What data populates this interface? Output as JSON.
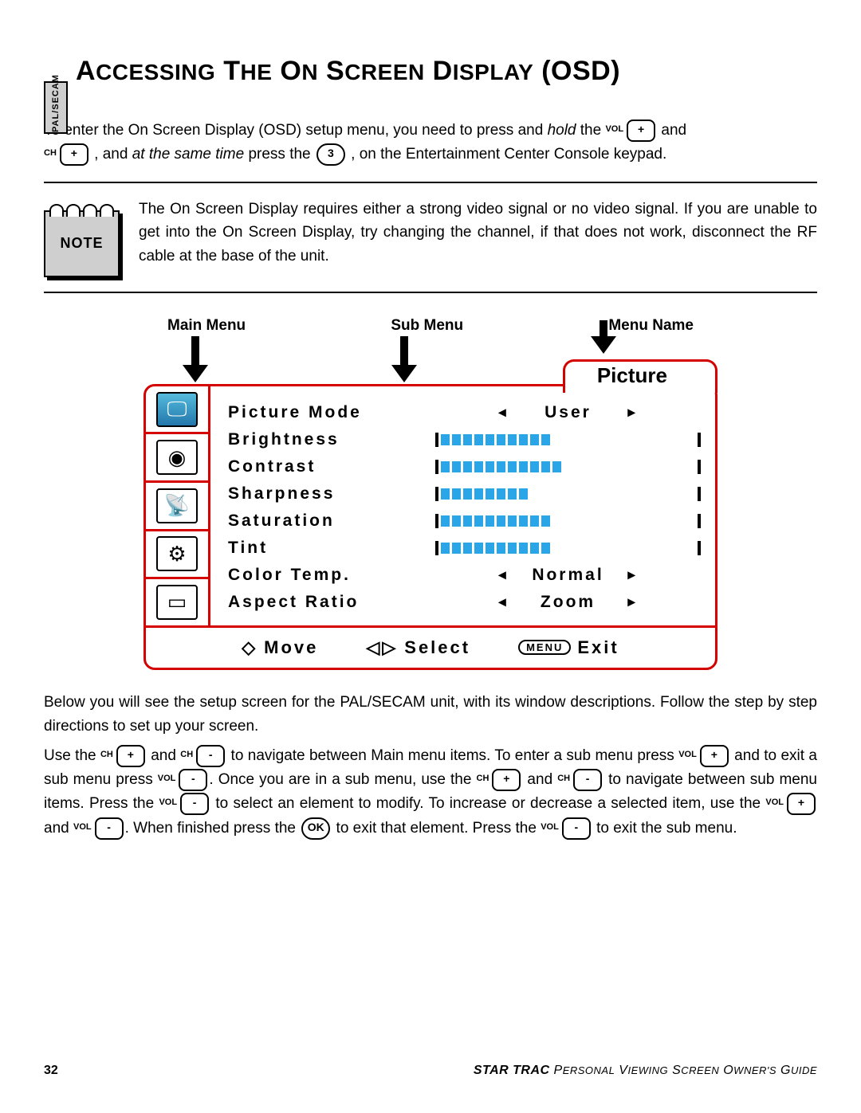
{
  "side_tab": "PAL/SECAM",
  "title_html": "A<span style='font-size:28px'>CCESSING</span> T<span style='font-size:28px'>HE</span> O<span style='font-size:28px'>N</span> S<span style='font-size:28px'>CREEN</span> D<span style='font-size:28px'>ISPLAY</span> (OSD)",
  "intro": {
    "p1a": "To enter the On Screen Display (OSD) setup menu, you need to press and ",
    "hold": "hold",
    "p1b": " the ",
    "vol": "VOL",
    "plus": "+",
    "and1": " and",
    "ch": "CH",
    "p2a": " , and ",
    "same": "at the same time",
    "p2b": " press the ",
    "three": "3",
    "p2c": " , on the Entertainment Center Console keypad."
  },
  "note": {
    "label": "NOTE",
    "text": "The On Screen Display requires either a strong video signal or no video signal.  If you are unable to get into the On Screen Display, try changing the channel, if that does not work, disconnect the RF cable at the base of the unit."
  },
  "labels": {
    "main": "Main Menu",
    "sub": "Sub Menu",
    "name": "Menu Name"
  },
  "osd": {
    "title": "Picture",
    "rows": [
      {
        "label": "Picture Mode",
        "type": "select",
        "value": "User"
      },
      {
        "label": "Brightness",
        "type": "bar",
        "segs": 10
      },
      {
        "label": "Contrast",
        "type": "bar",
        "segs": 11
      },
      {
        "label": "Sharpness",
        "type": "bar",
        "segs": 8
      },
      {
        "label": "Saturation",
        "type": "bar",
        "segs": 10
      },
      {
        "label": "Tint",
        "type": "bar",
        "segs": 10
      },
      {
        "label": "Color Temp.",
        "type": "select",
        "value": "Normal"
      },
      {
        "label": "Aspect Ratio",
        "type": "select",
        "value": "Zoom"
      }
    ],
    "footer": {
      "move": "Move",
      "select": "Select",
      "menu": "MENU",
      "exit": "Exit"
    },
    "icons": [
      "monitor",
      "dial",
      "satellite",
      "gears",
      "screen"
    ]
  },
  "below": {
    "p1": "Below you will see the setup screen for the PAL/SECAM unit, with its window descriptions.  Follow the step by step directions to set up your screen.",
    "use_the": "Use the ",
    "and": " and ",
    "nav_main": " to navigate between Main menu items.  To enter a sub menu press ",
    "exit_sub": " and  to exit a sub menu press ",
    "once_sub": ".  Once you are in a sub menu, use the ",
    "nav_sub": " to navigate between sub menu items.  Press the ",
    "sel_mod": " to select an element to modify.  To increase or decrease a selected item, use the ",
    "fin": ".  When finished press the ",
    "exit_el": " to exit that element.  Press the ",
    "exit_sm": " to exit the sub menu.",
    "minus": "-",
    "ok": "OK"
  },
  "footer": {
    "page": "32",
    "guide": "STAR TRAC PERSONAL VIEWING SCREEN OWNER'S GUIDE"
  }
}
